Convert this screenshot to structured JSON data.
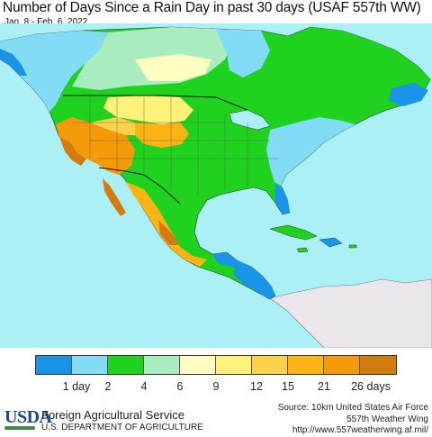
{
  "title": "Number of Days Since a Rain Day in past 30 days (USAF 557th WW)",
  "subtitle": "Jan. 8 - Feb. 6, 2022",
  "legend": {
    "colors": [
      "#1a94e8",
      "#82dcf5",
      "#1ed21e",
      "#a8ecc0",
      "#fefec0",
      "#fef27a",
      "#fcd24a",
      "#fcb414",
      "#f49a08",
      "#d27c10"
    ],
    "labels": [
      "1 day",
      "2",
      "4",
      "6",
      "9",
      "12",
      "15",
      "21",
      "26 days"
    ]
  },
  "map_colors": {
    "ocean": "#aaf0f5",
    "outside_land": "#ebe6ec",
    "border": "#111111"
  },
  "footer": {
    "logo": "USDA",
    "agency": "Foreign Agricultural Service",
    "department": "U.S. DEPARTMENT OF AGRICULTURE",
    "source_line1": "Source: 10km United States Air Force",
    "source_line2": "557th Weather Wing",
    "source_line3": "http://www.557weatherwing.af.mil/"
  }
}
